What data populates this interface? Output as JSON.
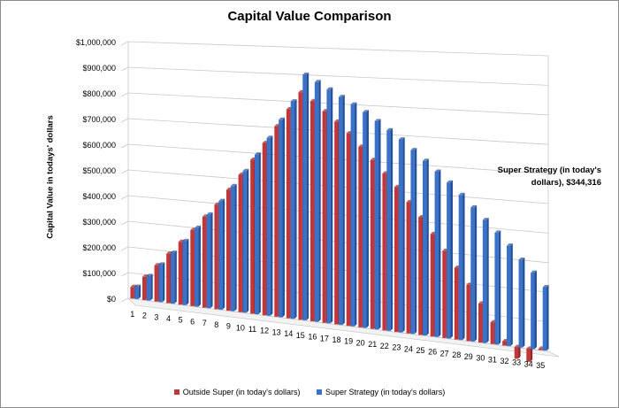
{
  "colors": {
    "outside": "#c0363a",
    "outside_dark": "#8e2528",
    "super": "#3a72c9",
    "super_dark": "#25509a",
    "grid": "#c8c8c8"
  },
  "chart_data": {
    "type": "bar",
    "title": "Capital Value Comparison",
    "xlabel": "",
    "ylabel": "Capital Value in todays' dollars",
    "ylim": [
      0,
      1000000
    ],
    "yticks": [
      "$0",
      "$100,000",
      "$200,000",
      "$300,000",
      "$400,000",
      "$500,000",
      "$600,000",
      "$700,000",
      "$800,000",
      "$900,000",
      "$1,000,000"
    ],
    "categories": [
      "1",
      "2",
      "3",
      "4",
      "5",
      "6",
      "7",
      "8",
      "9",
      "10",
      "11",
      "12",
      "13",
      "14",
      "15",
      "16",
      "17",
      "18",
      "19",
      "20",
      "21",
      "22",
      "23",
      "24",
      "25",
      "26",
      "27",
      "28",
      "29",
      "30",
      "31",
      "32",
      "33",
      "34",
      "35"
    ],
    "series": [
      {
        "name": "Outside Super (in today's dollars)",
        "values": [
          45000,
          90000,
          140000,
          190000,
          240000,
          290000,
          345000,
          395000,
          455000,
          515000,
          575000,
          640000,
          705000,
          770000,
          835000,
          805000,
          770000,
          735000,
          695000,
          650000,
          605000,
          560000,
          515000,
          465000,
          415000,
          360000,
          305000,
          250000,
          195000,
          135000,
          75000,
          15000,
          -40000,
          -45000,
          5000
        ]
      },
      {
        "name": "Super Strategy  (in today's dollars)",
        "values": [
          48000,
          95000,
          145000,
          195000,
          245000,
          300000,
          355000,
          410000,
          470000,
          530000,
          595000,
          660000,
          730000,
          800000,
          900000,
          875000,
          850000,
          825000,
          800000,
          775000,
          745000,
          715000,
          685000,
          650000,
          615000,
          580000,
          545000,
          505000,
          465000,
          425000,
          385000,
          344000,
          300000,
          260000,
          215000
        ]
      }
    ],
    "annotation": "Super Strategy (in today's dollars), $344,316",
    "legend_position": "bottom",
    "grid": true
  }
}
